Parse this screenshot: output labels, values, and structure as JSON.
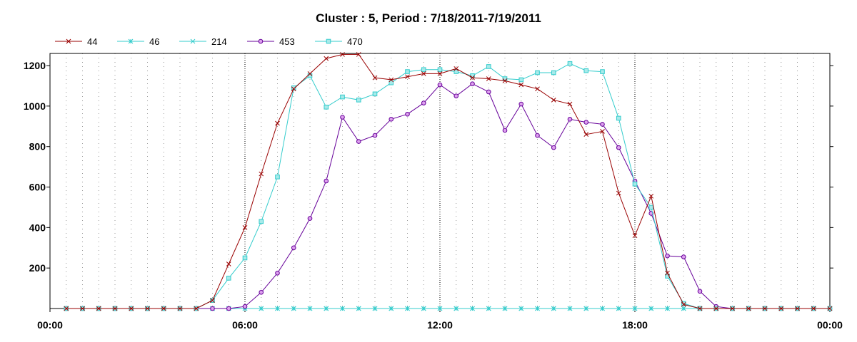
{
  "chart_data": {
    "type": "line",
    "title": "Cluster : 5, Period : 7/18/2011-7/19/2011",
    "xlabel": "",
    "ylabel": "",
    "x_unit": "hours",
    "xlim": [
      0,
      24
    ],
    "ylim": [
      0,
      1260
    ],
    "x_ticks": [
      {
        "value": 0,
        "label": "00:00"
      },
      {
        "value": 6,
        "label": "06:00"
      },
      {
        "value": 12,
        "label": "12:00"
      },
      {
        "value": 18,
        "label": "18:00"
      },
      {
        "value": 24,
        "label": "00:00"
      }
    ],
    "y_ticks": [
      {
        "value": 200,
        "label": "200"
      },
      {
        "value": 400,
        "label": "400"
      },
      {
        "value": 600,
        "label": "600"
      },
      {
        "value": 800,
        "label": "800"
      },
      {
        "value": 1000,
        "label": "1000"
      },
      {
        "value": 1200,
        "label": "1200"
      }
    ],
    "grid": true,
    "legend_position": "top-left",
    "x": [
      0.5,
      1,
      1.5,
      2,
      2.5,
      3,
      3.5,
      4,
      4.5,
      5,
      5.5,
      6,
      6.5,
      7,
      7.5,
      8,
      8.5,
      9,
      9.5,
      10,
      10.5,
      11,
      11.5,
      12,
      12.5,
      13,
      13.5,
      14,
      14.5,
      15,
      15.5,
      16,
      16.5,
      17,
      17.5,
      18,
      18.5,
      19,
      19.5,
      20,
      20.5,
      21,
      21.5,
      22,
      22.5,
      23,
      23.5,
      24
    ],
    "series": [
      {
        "name": "44",
        "color": "#990000",
        "marker": "x",
        "values": [
          0,
          0,
          0,
          0,
          0,
          0,
          0,
          0,
          0,
          40,
          220,
          400,
          665,
          915,
          1085,
          1160,
          1235,
          1255,
          1255,
          1140,
          1130,
          1145,
          1160,
          1160,
          1185,
          1140,
          1135,
          1125,
          1105,
          1085,
          1030,
          1010,
          860,
          875,
          570,
          360,
          555,
          175,
          20,
          0,
          0,
          0,
          0,
          0,
          0,
          0,
          0,
          0
        ]
      },
      {
        "name": "46",
        "color": "#33cccc",
        "marker": "asterisk",
        "values": [
          0,
          0,
          0,
          0,
          0,
          0,
          0,
          0,
          0,
          0,
          0,
          0,
          0,
          0,
          0,
          0,
          0,
          0,
          0,
          0,
          0,
          0,
          0,
          0,
          0,
          0,
          0,
          0,
          0,
          0,
          0,
          0,
          0,
          0,
          0,
          0,
          0,
          0,
          0,
          0,
          0,
          0,
          0,
          0,
          0,
          0,
          0,
          0
        ]
      },
      {
        "name": "214",
        "color": "#33cccc",
        "marker": "x",
        "values": [
          0,
          0,
          0,
          0,
          0,
          0,
          0,
          0,
          0,
          0,
          0,
          0,
          0,
          0,
          0,
          0,
          0,
          0,
          0,
          0,
          0,
          0,
          0,
          0,
          0,
          0,
          0,
          0,
          0,
          0,
          0,
          0,
          0,
          0,
          0,
          0,
          0,
          0,
          0,
          0,
          0,
          0,
          0,
          0,
          0,
          0,
          0,
          0
        ]
      },
      {
        "name": "453",
        "color": "#660099",
        "marker": "circle",
        "values": [
          0,
          0,
          0,
          0,
          0,
          0,
          0,
          0,
          0,
          0,
          0,
          10,
          80,
          175,
          300,
          445,
          630,
          945,
          825,
          855,
          935,
          960,
          1015,
          1105,
          1050,
          1110,
          1070,
          880,
          1010,
          855,
          795,
          935,
          920,
          910,
          795,
          630,
          470,
          260,
          255,
          85,
          10,
          0,
          0,
          0,
          0,
          0,
          0,
          0
        ]
      },
      {
        "name": "470",
        "color": "#33cccc",
        "marker": "square",
        "values": [
          0,
          0,
          0,
          0,
          0,
          0,
          0,
          0,
          0,
          40,
          150,
          250,
          430,
          650,
          1090,
          1150,
          995,
          1045,
          1030,
          1060,
          1115,
          1170,
          1180,
          1180,
          1170,
          1150,
          1195,
          1135,
          1130,
          1165,
          1165,
          1210,
          1175,
          1170,
          940,
          615,
          500,
          160,
          25,
          0,
          0,
          0,
          0,
          0,
          0,
          0,
          0,
          0
        ]
      }
    ]
  }
}
